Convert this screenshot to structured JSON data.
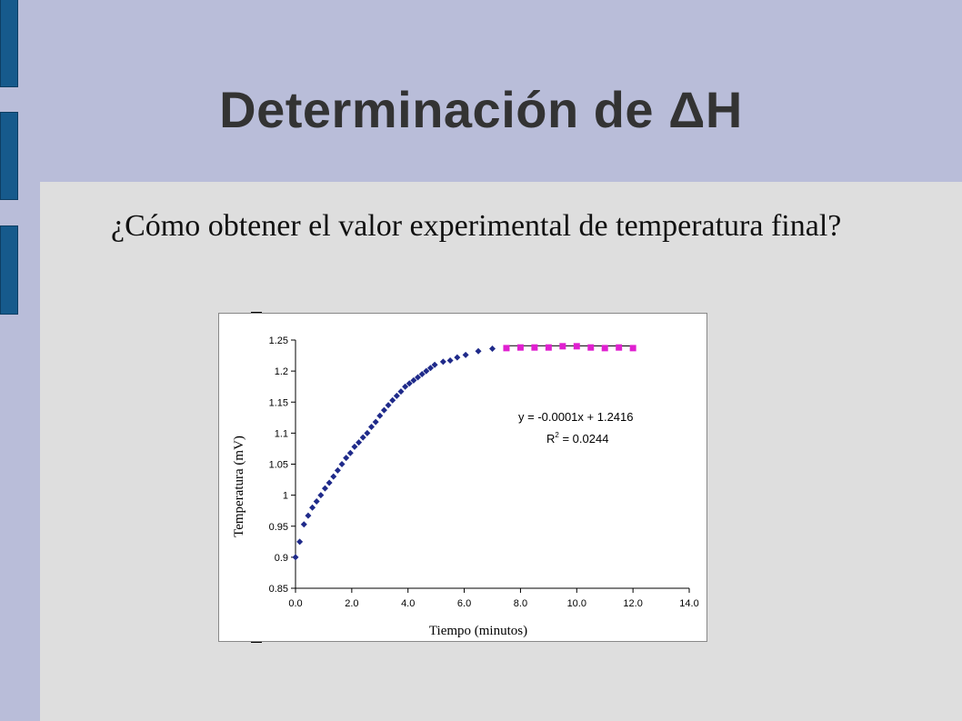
{
  "slide": {
    "title": "Determinación de ΔH",
    "question": "¿Cómo obtener el valor experimental de temperatura final?"
  },
  "colors": {
    "background": "#b9bdd9",
    "panel": "#dedede",
    "side_bars": "#165a8c",
    "series_rise": "#1f2a8a",
    "series_plateau": "#e020d0",
    "trendline": "#000000"
  },
  "chart_data": {
    "type": "scatter",
    "xlabel": "Tiempo (minutos)",
    "ylabel": "Temperatura (mV)",
    "xlim": [
      0.0,
      14.0
    ],
    "ylim": [
      0.85,
      1.25
    ],
    "xticks": [
      "0.0",
      "2.0",
      "4.0",
      "6.0",
      "8.0",
      "10.0",
      "12.0",
      "14.0"
    ],
    "yticks": [
      "0.85",
      "0.9",
      "0.95",
      "1",
      "1.05",
      "1.1",
      "1.15",
      "1.2",
      "1.25"
    ],
    "grid": false,
    "legend": "none",
    "series": [
      {
        "marker": "diamond",
        "color": "#1f2a8a",
        "x": [
          0.0,
          0.15,
          0.3,
          0.45,
          0.6,
          0.75,
          0.9,
          1.05,
          1.2,
          1.35,
          1.5,
          1.65,
          1.8,
          1.95,
          2.1,
          2.25,
          2.4,
          2.55,
          2.7,
          2.85,
          3.0,
          3.15,
          3.3,
          3.45,
          3.6,
          3.75,
          3.9,
          4.05,
          4.2,
          4.35,
          4.5,
          4.65,
          4.8,
          4.95,
          5.25,
          5.5,
          5.75,
          6.05,
          6.5,
          7.0
        ],
        "y": [
          0.9,
          0.925,
          0.953,
          0.967,
          0.98,
          0.99,
          1.0,
          1.011,
          1.02,
          1.03,
          1.04,
          1.05,
          1.06,
          1.068,
          1.078,
          1.085,
          1.093,
          1.1,
          1.11,
          1.118,
          1.128,
          1.137,
          1.145,
          1.153,
          1.16,
          1.167,
          1.175,
          1.18,
          1.185,
          1.19,
          1.195,
          1.2,
          1.205,
          1.21,
          1.215,
          1.217,
          1.222,
          1.226,
          1.232,
          1.236
        ]
      },
      {
        "marker": "square",
        "color": "#e020d0",
        "x": [
          7.5,
          8.0,
          8.5,
          9.0,
          9.5,
          10.0,
          10.5,
          11.0,
          11.5,
          12.0
        ],
        "y": [
          1.237,
          1.238,
          1.238,
          1.238,
          1.24,
          1.24,
          1.238,
          1.237,
          1.238,
          1.237
        ]
      }
    ],
    "trendline": {
      "slope": -0.0001,
      "intercept": 1.2416,
      "x_range": [
        7.5,
        12.0
      ]
    },
    "annotations": [
      {
        "text": "y = -0.0001x + 1.2416"
      },
      {
        "text": "R",
        "superscript": "2",
        "suffix": " = 0.0244"
      }
    ]
  }
}
